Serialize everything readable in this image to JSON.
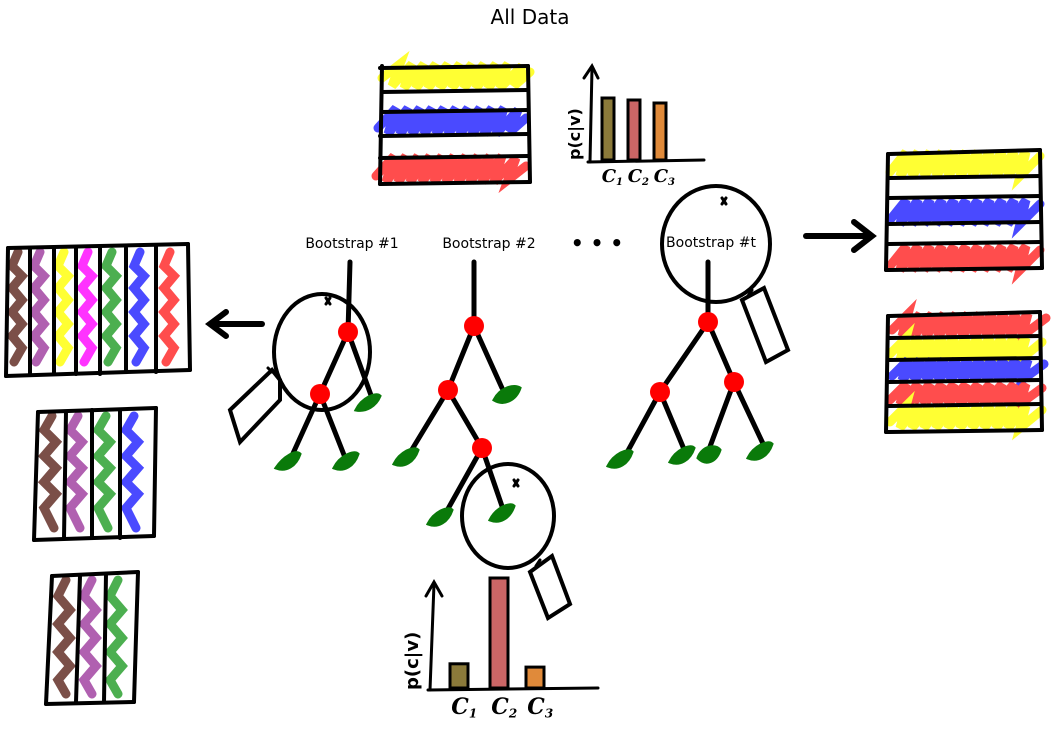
{
  "title": "All Data",
  "bootstraps": [
    {
      "label": "Bootstrap #1"
    },
    {
      "label": "Bootstrap #2"
    },
    {
      "label": "Bootstrap #t"
    }
  ],
  "ellipsis": "• • •",
  "colors": {
    "yellow": "#ffff33",
    "blue": "#4a4aff",
    "red": "#ff4d4d",
    "brown": "#7b4f48",
    "purple": "#b060b0",
    "magenta": "#ff33ff",
    "green": "#4caf50",
    "node": "#ff0000",
    "leaf": "#0a7a0a",
    "bar_c1": "#8b7a3a",
    "bar_c2": "#cc6666",
    "bar_c3": "#e08a3a"
  },
  "chart_top": {
    "ylabel": "p(c|v)",
    "categories": [
      "c1",
      "c2",
      "c3"
    ],
    "category_labels": {
      "c1": {
        "base": "C",
        "sub": "1"
      },
      "c2": {
        "base": "C",
        "sub": "2"
      },
      "c3": {
        "base": "C",
        "sub": "3"
      }
    },
    "values": [
      0.62,
      0.6,
      0.57
    ],
    "ylim": [
      0,
      1
    ]
  },
  "chart_bottom": {
    "ylabel": "p(c|v)",
    "categories": [
      "c1",
      "c2",
      "c3"
    ],
    "category_labels": {
      "c1": {
        "base": "C",
        "sub": "1"
      },
      "c2": {
        "base": "C",
        "sub": "2"
      },
      "c3": {
        "base": "C",
        "sub": "3"
      }
    },
    "values": [
      0.22,
      1.0,
      0.19
    ],
    "ylim": [
      0,
      1
    ]
  }
}
